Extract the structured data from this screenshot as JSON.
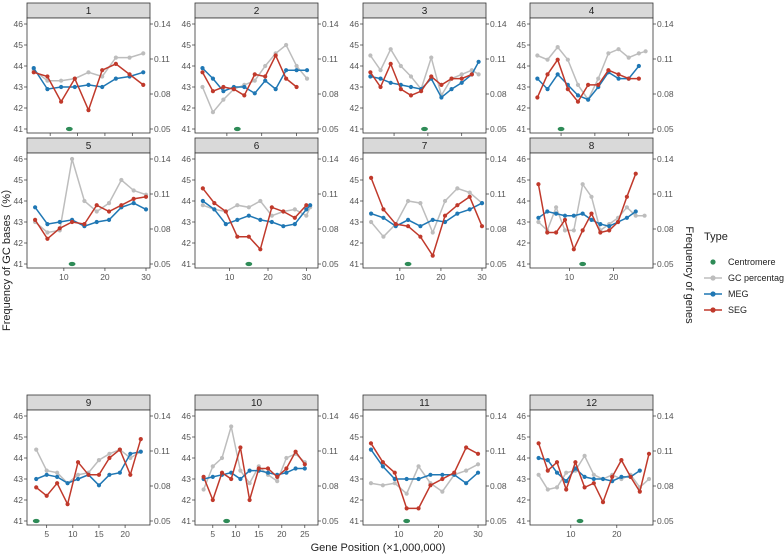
{
  "chart_data": {
    "type": "line",
    "title": "",
    "xlabel": "Gene Position (×1,000,000)",
    "ylabel_left": "Frequency of GC bases（%）",
    "ylabel_right": "Frequency of genes",
    "left_axis": {
      "ylim": [
        41,
        46
      ],
      "ticks": [
        "41",
        "42",
        "43",
        "44",
        "45",
        "46"
      ]
    },
    "right_axis": {
      "ylim": [
        0.05,
        0.14
      ],
      "ticks": [
        "0.05",
        "0.08",
        "0.11",
        "0.14"
      ]
    },
    "legend": {
      "title": "Type",
      "position": "right",
      "entries": [
        {
          "name": "Centromere",
          "color": "#2e8b57"
        },
        {
          "name": "GC percentage",
          "color": "#bdbdbd"
        },
        {
          "name": "MEG",
          "color": "#1f77b4"
        },
        {
          "name": "SEG",
          "color": "#c0392b"
        }
      ]
    },
    "panels": [
      {
        "label": "1",
        "xlim": [
          3,
          45
        ],
        "xticks": [
          10,
          20,
          30,
          40
        ],
        "centromere": 17,
        "x": [
          4,
          9,
          14,
          19,
          24,
          29,
          34,
          39,
          44
        ],
        "gc": [
          43.8,
          43.3,
          43.3,
          43.4,
          43.7,
          43.5,
          44.4,
          44.4,
          44.6
        ],
        "meg": [
          43.9,
          42.9,
          43.0,
          43.0,
          43.1,
          43.0,
          43.4,
          43.5,
          43.7
        ],
        "seg": [
          43.7,
          43.5,
          42.3,
          43.4,
          41.9,
          43.8,
          44.1,
          43.6,
          43.1
        ]
      },
      {
        "label": "2",
        "xlim": [
          2,
          35
        ],
        "xticks": [
          10,
          20,
          30
        ],
        "centromere": 13,
        "x": [
          3,
          6,
          9,
          12,
          15,
          18,
          21,
          24,
          27,
          30,
          33
        ],
        "gc": [
          43.0,
          41.8,
          42.4,
          42.9,
          43.1,
          43.3,
          44.0,
          44.6,
          45.0,
          44.0,
          43.4
        ],
        "meg": [
          43.9,
          43.4,
          42.8,
          43.0,
          43.0,
          42.7,
          43.3,
          42.9,
          43.8,
          43.8,
          43.8
        ],
        "seg": [
          43.7,
          42.8,
          43.0,
          42.9,
          42.6,
          43.6,
          43.5,
          44.5,
          43.4,
          43.0,
          null
        ]
      },
      {
        "label": "3",
        "xlim": [
          2,
          36
        ],
        "xticks": [
          10,
          20,
          30
        ],
        "centromere": 19,
        "x": [
          3,
          6,
          9,
          12,
          15,
          18,
          21,
          24,
          27,
          30,
          33,
          35
        ],
        "gc": [
          44.5,
          43.8,
          44.8,
          44.0,
          43.5,
          42.9,
          44.4,
          42.6,
          43.4,
          43.6,
          43.8,
          43.6
        ],
        "meg": [
          43.5,
          43.4,
          43.2,
          43.1,
          43.0,
          42.9,
          43.4,
          42.5,
          42.9,
          43.2,
          43.6,
          44.2
        ],
        "seg": [
          43.7,
          43.0,
          44.1,
          42.9,
          42.6,
          42.8,
          43.5,
          43.1,
          43.4,
          43.4,
          43.6,
          null
        ]
      },
      {
        "label": "4",
        "xlim": [
          2,
          36
        ],
        "xticks": [
          10,
          20,
          30
        ],
        "centromere": 10,
        "x": [
          3,
          6,
          9,
          12,
          15,
          18,
          21,
          24,
          27,
          30,
          33,
          35
        ],
        "gc": [
          44.5,
          44.3,
          44.9,
          44.3,
          43.1,
          42.4,
          43.4,
          44.6,
          44.8,
          44.4,
          44.6,
          44.7
        ],
        "meg": [
          43.4,
          42.9,
          43.6,
          43.1,
          42.6,
          42.4,
          43.0,
          43.7,
          43.4,
          43.4,
          44.0,
          null
        ],
        "seg": [
          42.5,
          43.6,
          44.3,
          42.9,
          42.3,
          43.1,
          43.1,
          43.8,
          43.6,
          43.4,
          43.4,
          null
        ]
      },
      {
        "label": "5",
        "xlim": [
          2,
          30
        ],
        "xticks": [
          10,
          20,
          30
        ],
        "centromere": 12,
        "x": [
          3,
          6,
          9,
          12,
          15,
          18,
          21,
          24,
          27,
          30
        ],
        "gc": [
          43.0,
          42.5,
          42.6,
          46.0,
          44.0,
          43.5,
          43.9,
          45.0,
          44.5,
          44.3
        ],
        "meg": [
          43.7,
          42.9,
          43.0,
          43.1,
          42.8,
          43.0,
          43.1,
          43.7,
          43.9,
          43.6
        ],
        "seg": [
          43.1,
          42.2,
          42.7,
          43.0,
          42.9,
          43.8,
          43.5,
          43.8,
          44.1,
          44.2
        ]
      },
      {
        "label": "6",
        "xlim": [
          2,
          32
        ],
        "xticks": [
          10,
          20,
          30
        ],
        "centromere": 15,
        "x": [
          3,
          6,
          9,
          12,
          15,
          18,
          21,
          24,
          27,
          30,
          31
        ],
        "gc": [
          43.8,
          43.6,
          43.5,
          43.8,
          43.7,
          44.0,
          43.3,
          43.5,
          43.6,
          43.3,
          43.7
        ],
        "meg": [
          44.0,
          43.6,
          42.9,
          43.1,
          43.3,
          43.1,
          43.0,
          42.8,
          42.9,
          43.6,
          43.8
        ],
        "seg": [
          44.6,
          43.9,
          43.5,
          42.3,
          42.3,
          41.7,
          43.7,
          43.5,
          43.2,
          43.8,
          null
        ]
      },
      {
        "label": "7",
        "xlim": [
          2,
          30
        ],
        "xticks": [
          10,
          20,
          30
        ],
        "centromere": 12,
        "x": [
          3,
          6,
          9,
          12,
          15,
          18,
          21,
          24,
          27,
          30
        ],
        "gc": [
          43.0,
          42.3,
          42.9,
          44.0,
          43.9,
          42.5,
          44.0,
          44.6,
          44.4,
          43.9
        ],
        "meg": [
          43.4,
          43.2,
          42.8,
          43.1,
          42.8,
          43.1,
          43.0,
          43.4,
          43.6,
          43.9
        ],
        "seg": [
          45.1,
          43.6,
          42.9,
          42.8,
          42.3,
          41.4,
          43.3,
          43.8,
          44.2,
          42.8
        ]
      },
      {
        "label": "8",
        "xlim": [
          2,
          28
        ],
        "xticks": [
          10,
          20
        ],
        "centromere": 13,
        "x": [
          3,
          5,
          7,
          9,
          11,
          13,
          15,
          17,
          19,
          21,
          23,
          25,
          27
        ],
        "gc": [
          43.0,
          42.6,
          43.7,
          42.6,
          42.6,
          44.8,
          44.2,
          42.6,
          42.9,
          43.2,
          43.7,
          43.3,
          43.3
        ],
        "meg": [
          43.2,
          43.5,
          43.4,
          43.3,
          43.3,
          43.4,
          43.1,
          42.9,
          42.8,
          43.0,
          43.2,
          43.5,
          null
        ],
        "seg": [
          44.8,
          42.5,
          42.5,
          43.1,
          41.7,
          42.6,
          43.4,
          42.5,
          42.6,
          43.0,
          44.2,
          45.3,
          null
        ]
      },
      {
        "label": "9",
        "xlim": [
          2,
          24
        ],
        "xticks": [
          5,
          10,
          15,
          20
        ],
        "centromere": 3,
        "x": [
          3,
          5,
          7,
          9,
          11,
          13,
          15,
          17,
          19,
          21,
          23
        ],
        "gc": [
          44.4,
          43.4,
          43.3,
          42.8,
          43.2,
          43.3,
          43.9,
          44.2,
          44.4,
          44.0,
          44.3
        ],
        "meg": [
          43.0,
          43.2,
          43.1,
          42.8,
          43.0,
          43.2,
          42.7,
          43.2,
          43.3,
          44.2,
          44.3
        ],
        "seg": [
          42.6,
          42.2,
          42.8,
          41.8,
          43.8,
          43.2,
          43.2,
          44.0,
          44.4,
          43.2,
          44.9
        ]
      },
      {
        "label": "10",
        "xlim": [
          2,
          27
        ],
        "xticks": [
          5,
          10,
          15,
          20,
          25
        ],
        "centromere": 8,
        "x": [
          3,
          5,
          7,
          9,
          11,
          13,
          15,
          17,
          19,
          21,
          23,
          25
        ],
        "gc": [
          42.5,
          43.6,
          44.0,
          45.5,
          43.4,
          42.8,
          43.6,
          43.2,
          42.9,
          44.0,
          44.2,
          43.8
        ],
        "meg": [
          43.0,
          43.1,
          43.2,
          43.3,
          43.0,
          43.4,
          43.4,
          43.3,
          43.2,
          43.3,
          43.5,
          43.5
        ],
        "seg": [
          43.1,
          42.0,
          43.3,
          43.0,
          44.5,
          42.0,
          43.5,
          43.5,
          43.1,
          43.5,
          44.3,
          43.7
        ]
      },
      {
        "label": "11",
        "xlim": [
          2,
          31
        ],
        "xticks": [
          10,
          20,
          30
        ],
        "centromere": 12,
        "x": [
          3,
          6,
          9,
          12,
          15,
          18,
          21,
          24,
          27,
          30
        ],
        "gc": [
          42.8,
          42.7,
          42.8,
          42.3,
          43.6,
          42.8,
          42.4,
          43.2,
          43.4,
          43.7
        ],
        "meg": [
          44.4,
          43.6,
          43.0,
          43.0,
          43.0,
          43.2,
          43.2,
          43.2,
          42.8,
          43.3
        ],
        "seg": [
          44.7,
          43.8,
          43.3,
          41.6,
          41.6,
          42.7,
          43.0,
          43.3,
          44.5,
          44.2
        ]
      },
      {
        "label": "12",
        "xlim": [
          2,
          27
        ],
        "xticks": [
          10,
          20
        ],
        "centromere": 12,
        "x": [
          3,
          5,
          7,
          9,
          11,
          13,
          15,
          17,
          19,
          21,
          23,
          25,
          27
        ],
        "gc": [
          43.2,
          42.5,
          42.6,
          43.3,
          43.4,
          44.1,
          43.2,
          43.0,
          43.2,
          43.0,
          43.2,
          42.6,
          43.0
        ],
        "meg": [
          44.0,
          43.9,
          43.3,
          42.9,
          43.5,
          43.1,
          43.0,
          43.0,
          42.9,
          43.1,
          43.1,
          43.4,
          null
        ],
        "seg": [
          44.7,
          43.4,
          43.8,
          42.5,
          43.8,
          42.6,
          42.8,
          41.9,
          43.1,
          43.9,
          43.1,
          42.4,
          44.2
        ]
      }
    ]
  }
}
